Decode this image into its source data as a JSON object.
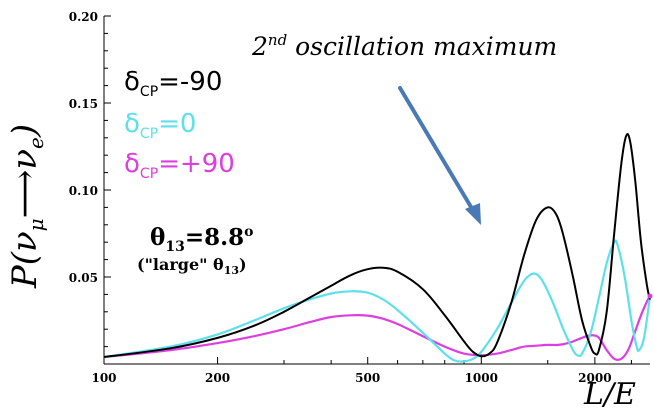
{
  "chart_data": {
    "type": "line",
    "xscale": "log",
    "xlim": [
      100,
      2800
    ],
    "ylim": [
      0,
      0.2
    ],
    "xlabel": "L/E",
    "ylabel": "P(ν_μ → ν_e)",
    "ylabel_parts": {
      "prefix": "P(",
      "nu_mu": "ν",
      "mu": "μ",
      "arrow": "⟶",
      "nu_e": "ν",
      "e": "e",
      "suffix": ")"
    },
    "xticks": [
      100,
      200,
      500,
      1000,
      2000
    ],
    "xtick_labels": [
      "100",
      "200",
      "500",
      "1000",
      "2000"
    ],
    "yticks": [
      0.05,
      0.1,
      0.15,
      0.2
    ],
    "ytick_labels": [
      "0.05",
      "0.10",
      "0.15",
      "0.20"
    ],
    "grid": false,
    "legend_placement": "top-left",
    "series": [
      {
        "legend": {
          "sym": "δ",
          "sub": "CP",
          "val": "=-90"
        },
        "color": "#000000",
        "points": [
          [
            100,
            0.004
          ],
          [
            150,
            0.009
          ],
          [
            200,
            0.015
          ],
          [
            250,
            0.022
          ],
          [
            300,
            0.03
          ],
          [
            350,
            0.038
          ],
          [
            400,
            0.045
          ],
          [
            450,
            0.051
          ],
          [
            500,
            0.0545
          ],
          [
            550,
            0.0553
          ],
          [
            600,
            0.053
          ],
          [
            700,
            0.043
          ],
          [
            800,
            0.028
          ],
          [
            900,
            0.013
          ],
          [
            950,
            0.007
          ],
          [
            1000,
            0.0045
          ],
          [
            1050,
            0.006
          ],
          [
            1100,
            0.012
          ],
          [
            1200,
            0.035
          ],
          [
            1300,
            0.063
          ],
          [
            1400,
            0.083
          ],
          [
            1500,
            0.09
          ],
          [
            1580,
            0.086
          ],
          [
            1650,
            0.074
          ],
          [
            1750,
            0.05
          ],
          [
            1850,
            0.025
          ],
          [
            1950,
            0.01
          ],
          [
            2000,
            0.006
          ],
          [
            2050,
            0.008
          ],
          [
            2150,
            0.03
          ],
          [
            2250,
            0.075
          ],
          [
            2350,
            0.115
          ],
          [
            2420,
            0.131
          ],
          [
            2480,
            0.128
          ],
          [
            2560,
            0.105
          ],
          [
            2650,
            0.07
          ],
          [
            2750,
            0.045
          ],
          [
            2800,
            0.037
          ]
        ]
      },
      {
        "legend": {
          "sym": "δ",
          "sub": "CP",
          "val": "=0"
        },
        "color": "#5ee0ea",
        "points": [
          [
            100,
            0.004
          ],
          [
            150,
            0.01
          ],
          [
            200,
            0.017
          ],
          [
            250,
            0.025
          ],
          [
            300,
            0.032
          ],
          [
            350,
            0.037
          ],
          [
            400,
            0.0405
          ],
          [
            450,
            0.0418
          ],
          [
            500,
            0.041
          ],
          [
            550,
            0.037
          ],
          [
            600,
            0.031
          ],
          [
            700,
            0.018
          ],
          [
            800,
            0.006
          ],
          [
            850,
            0.002
          ],
          [
            900,
            0.0015
          ],
          [
            950,
            0.003
          ],
          [
            1000,
            0.007
          ],
          [
            1100,
            0.02
          ],
          [
            1200,
            0.035
          ],
          [
            1300,
            0.048
          ],
          [
            1380,
            0.052
          ],
          [
            1450,
            0.048
          ],
          [
            1550,
            0.035
          ],
          [
            1650,
            0.02
          ],
          [
            1750,
            0.008
          ],
          [
            1800,
            0.005
          ],
          [
            1850,
            0.006
          ],
          [
            1950,
            0.018
          ],
          [
            2050,
            0.038
          ],
          [
            2150,
            0.058
          ],
          [
            2250,
            0.07
          ],
          [
            2300,
            0.068
          ],
          [
            2400,
            0.05
          ],
          [
            2500,
            0.025
          ],
          [
            2580,
            0.01
          ],
          [
            2620,
            0.008
          ],
          [
            2700,
            0.015
          ],
          [
            2800,
            0.039
          ]
        ]
      },
      {
        "legend": {
          "sym": "δ",
          "sub": "CP",
          "val": "=+90"
        },
        "color": "#dd3ee0",
        "points": [
          [
            100,
            0.004
          ],
          [
            150,
            0.008
          ],
          [
            200,
            0.012
          ],
          [
            250,
            0.016
          ],
          [
            300,
            0.02
          ],
          [
            350,
            0.024
          ],
          [
            400,
            0.027
          ],
          [
            450,
            0.028
          ],
          [
            500,
            0.0278
          ],
          [
            550,
            0.026
          ],
          [
            600,
            0.023
          ],
          [
            700,
            0.016
          ],
          [
            800,
            0.01
          ],
          [
            900,
            0.006
          ],
          [
            1000,
            0.005
          ],
          [
            1100,
            0.006
          ],
          [
            1200,
            0.008
          ],
          [
            1300,
            0.01
          ],
          [
            1400,
            0.0105
          ],
          [
            1500,
            0.011
          ],
          [
            1600,
            0.011
          ],
          [
            1700,
            0.012
          ],
          [
            1800,
            0.014
          ],
          [
            1900,
            0.016
          ],
          [
            1980,
            0.0165
          ],
          [
            2050,
            0.015
          ],
          [
            2150,
            0.008
          ],
          [
            2250,
            0.003
          ],
          [
            2350,
            0.003
          ],
          [
            2450,
            0.008
          ],
          [
            2550,
            0.018
          ],
          [
            2650,
            0.028
          ],
          [
            2750,
            0.036
          ],
          [
            2800,
            0.039
          ]
        ]
      }
    ],
    "annotations": {
      "arrow_text": "oscillation maximum",
      "arrow_number": "2",
      "arrow_superscript": "nd",
      "theta_sym": "θ",
      "theta_sub": "13",
      "theta_val": "=8.8",
      "theta_sup": "o",
      "theta_note": "(\"large\" θ",
      "theta_note_sub": "13",
      "theta_note_end": ")",
      "arrow_color": "#4a7ab5"
    }
  }
}
